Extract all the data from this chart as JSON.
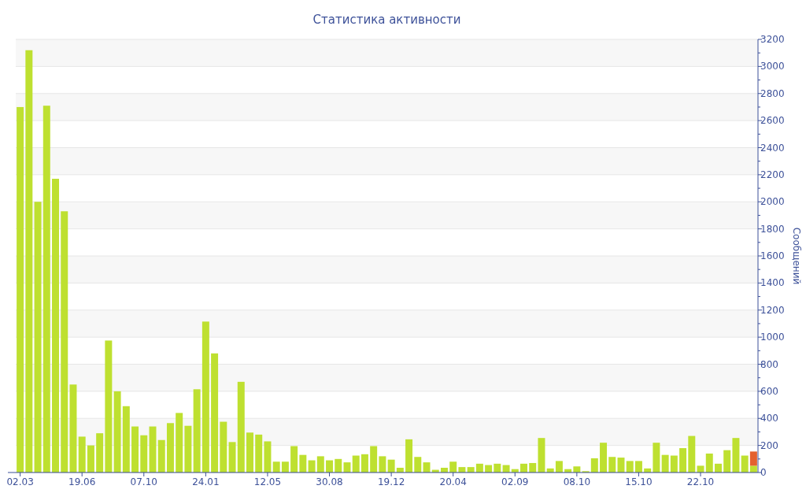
{
  "chart_data": {
    "type": "bar",
    "title": "Статистика активности",
    "ylabel": "Сообщений",
    "stacked": true,
    "grid": "y",
    "categories": [
      "02.03",
      null,
      null,
      null,
      null,
      null,
      null,
      "19.06",
      null,
      null,
      null,
      null,
      null,
      null,
      "07.10",
      null,
      null,
      null,
      null,
      null,
      null,
      "24.01",
      null,
      null,
      null,
      null,
      null,
      null,
      "12.05",
      null,
      null,
      null,
      null,
      null,
      null,
      "30.08",
      null,
      null,
      null,
      null,
      null,
      null,
      "19.12",
      null,
      null,
      null,
      null,
      null,
      null,
      "20.04",
      null,
      null,
      null,
      null,
      null,
      null,
      "02.09",
      null,
      null,
      null,
      null,
      null,
      null,
      "08.10",
      null,
      null,
      null,
      null,
      null,
      null,
      "15.10",
      null,
      null,
      null,
      null,
      null,
      null,
      "22.10",
      null,
      null,
      null,
      null,
      null,
      null
    ],
    "series": [
      {
        "color": "#bee030",
        "values": [
          2700,
          3120,
          2000,
          2710,
          2170,
          1930,
          650,
          265,
          200,
          290,
          975,
          600,
          490,
          340,
          275,
          340,
          240,
          365,
          440,
          345,
          615,
          1115,
          880,
          375,
          225,
          670,
          295,
          280,
          230,
          80,
          80,
          195,
          130,
          90,
          120,
          90,
          100,
          75,
          125,
          135,
          195,
          120,
          95,
          35,
          245,
          115,
          75,
          20,
          35,
          80,
          40,
          40,
          65,
          55,
          65,
          55,
          25,
          65,
          70,
          255,
          30,
          85,
          25,
          45,
          10,
          105,
          220,
          115,
          110,
          85,
          85,
          30,
          220,
          130,
          125,
          180,
          270,
          50,
          140,
          65,
          165,
          255,
          125,
          50
        ]
      },
      {
        "color": "#e4612f",
        "values": [
          null,
          null,
          null,
          null,
          null,
          null,
          null,
          null,
          null,
          null,
          null,
          null,
          null,
          null,
          null,
          null,
          null,
          null,
          null,
          null,
          null,
          null,
          null,
          null,
          null,
          null,
          null,
          null,
          null,
          null,
          null,
          null,
          null,
          null,
          null,
          null,
          null,
          null,
          null,
          null,
          null,
          null,
          null,
          null,
          null,
          null,
          null,
          null,
          null,
          null,
          null,
          null,
          null,
          null,
          null,
          null,
          null,
          null,
          null,
          null,
          null,
          null,
          null,
          null,
          null,
          null,
          null,
          null,
          null,
          null,
          null,
          null,
          null,
          null,
          null,
          null,
          null,
          null,
          null,
          null,
          null,
          null,
          null,
          105
        ]
      }
    ],
    "ylim": [
      0,
      3200
    ],
    "yticks": [
      0,
      {
        "value": 100,
        "label": null
      },
      200,
      {
        "value": 300,
        "label": null
      },
      400,
      {
        "value": 500,
        "label": null
      },
      600,
      {
        "value": 700,
        "label": null
      },
      800,
      {
        "value": 900,
        "label": null
      },
      1000,
      {
        "value": 1100,
        "label": null
      },
      1200,
      {
        "value": 1300,
        "label": null
      },
      1400,
      {
        "value": 1500,
        "label": null
      },
      1600,
      {
        "value": 1700,
        "label": null
      },
      1800,
      {
        "value": 1900,
        "label": null
      },
      2000,
      {
        "value": 2100,
        "label": null
      },
      2200,
      {
        "value": 2300,
        "label": null
      },
      2400,
      {
        "value": 2500,
        "label": null
      },
      2600,
      {
        "value": 2700,
        "label": null
      },
      2800,
      {
        "value": 2900,
        "label": null
      },
      3000,
      {
        "value": 3100,
        "label": null
      },
      3200
    ]
  }
}
